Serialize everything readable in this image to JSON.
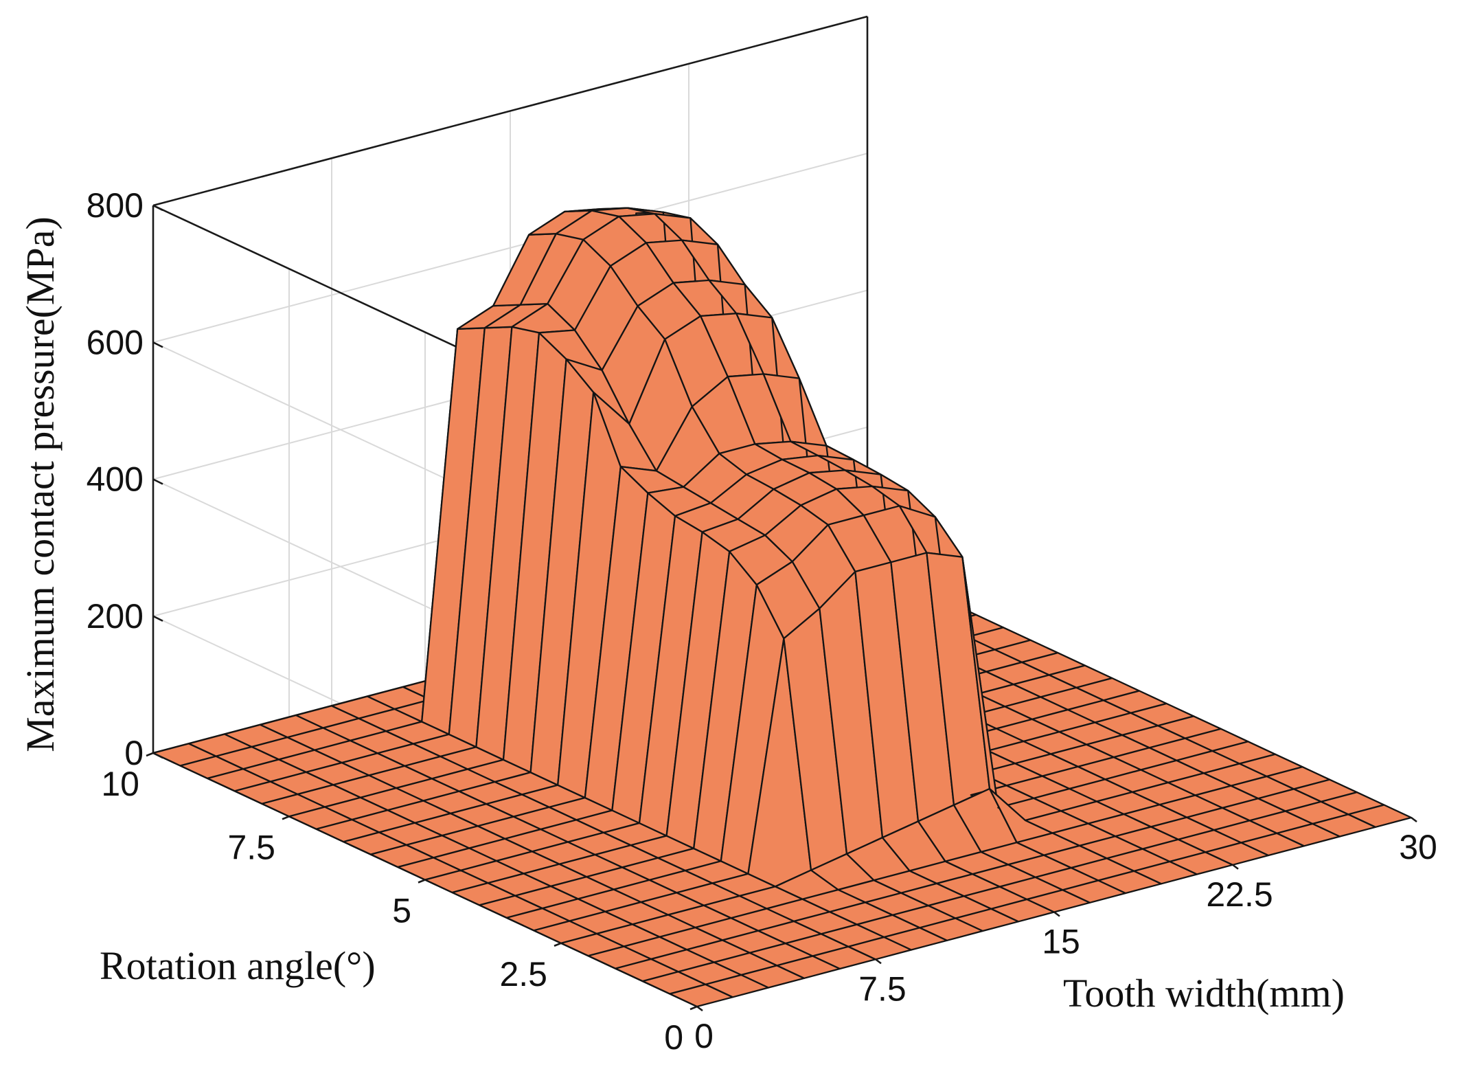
{
  "chart_data": {
    "type": "surface",
    "title": "",
    "xlabel": "Tooth width(mm)",
    "ylabel": "Rotation angle(°)",
    "zlabel": "Maximum contact pressure(MPa)",
    "xlim": [
      0,
      30
    ],
    "ylim": [
      0,
      10
    ],
    "zlim": [
      0,
      800
    ],
    "x_ticks": [
      "0",
      "7.5",
      "15",
      "22.5",
      "30"
    ],
    "y_ticks": [
      "0",
      "2.5",
      "5",
      "7.5",
      "10"
    ],
    "z_ticks": [
      "0",
      "200",
      "400",
      "600",
      "800"
    ],
    "grid": true,
    "surface_color": "#F0865A",
    "edge_color": "#141414",
    "x": [
      0,
      1.5,
      3,
      4.5,
      6,
      7.5,
      9,
      10.5,
      12,
      13.5,
      15,
      16.5,
      18,
      19.5,
      21,
      22.5,
      24,
      25.5,
      27,
      28.5,
      30
    ],
    "y": [
      0,
      0.5,
      1,
      1.5,
      2,
      2.5,
      3,
      3.5,
      4,
      4.5,
      5,
      5.5,
      6,
      6.5,
      7,
      7.5,
      8,
      8.5,
      9,
      9.5,
      10
    ],
    "z": [
      [
        0,
        0,
        0,
        0,
        0,
        0,
        0,
        0,
        0,
        0,
        0,
        0,
        0,
        0,
        0,
        0,
        0,
        0,
        0,
        0,
        0
      ],
      [
        0,
        0,
        0,
        0,
        0,
        0,
        0,
        0,
        0,
        0,
        0,
        0,
        0,
        0,
        0,
        0,
        0,
        0,
        0,
        0,
        0
      ],
      [
        0,
        0,
        0,
        0,
        0,
        0,
        0,
        0,
        0,
        0,
        0,
        0,
        0,
        0,
        0,
        0,
        0,
        0,
        0,
        0,
        0
      ],
      [
        0,
        0,
        0,
        0,
        0,
        0,
        0,
        0,
        0,
        0,
        0,
        0,
        0,
        0,
        0,
        0,
        0,
        0,
        0,
        0,
        0
      ],
      [
        0,
        0,
        0,
        0,
        0,
        0,
        0,
        0,
        0,
        0,
        0,
        0,
        0,
        0,
        0,
        0,
        0,
        0,
        0,
        0,
        0
      ],
      [
        0,
        0,
        0,
        0,
        0,
        0,
        0,
        10,
        20,
        30,
        40,
        50,
        60,
        0,
        0,
        0,
        0,
        0,
        0,
        0,
        0
      ],
      [
        0,
        0,
        0,
        0,
        0,
        0,
        0,
        330,
        360,
        400,
        400,
        400,
        380,
        0,
        0,
        0,
        0,
        0,
        0,
        0,
        0
      ],
      [
        0,
        0,
        0,
        0,
        0,
        0,
        0,
        390,
        410,
        450,
        450,
        450,
        420,
        0,
        0,
        0,
        0,
        0,
        0,
        0,
        0
      ],
      [
        0,
        0,
        0,
        0,
        0,
        0,
        0,
        420,
        430,
        460,
        470,
        460,
        440,
        0,
        0,
        0,
        0,
        0,
        0,
        0,
        0
      ],
      [
        0,
        0,
        0,
        0,
        0,
        0,
        0,
        430,
        435,
        465,
        475,
        465,
        445,
        0,
        0,
        0,
        0,
        0,
        0,
        0,
        0
      ],
      [
        0,
        0,
        0,
        0,
        0,
        0,
        0,
        435,
        440,
        468,
        476,
        468,
        448,
        0,
        0,
        0,
        0,
        0,
        0,
        0,
        0
      ],
      [
        0,
        0,
        0,
        0,
        0,
        0,
        0,
        450,
        445,
        480,
        480,
        470,
        450,
        0,
        0,
        0,
        0,
        0,
        0,
        0,
        0
      ],
      [
        0,
        0,
        0,
        0,
        0,
        0,
        0,
        470,
        450,
        530,
        560,
        550,
        530,
        0,
        0,
        0,
        0,
        0,
        0,
        0,
        0
      ],
      [
        0,
        0,
        0,
        0,
        0,
        0,
        0,
        560,
        500,
        610,
        630,
        620,
        600,
        0,
        0,
        0,
        0,
        0,
        0,
        0,
        0
      ],
      [
        0,
        0,
        0,
        0,
        0,
        0,
        0,
        590,
        560,
        640,
        660,
        650,
        630,
        0,
        0,
        0,
        0,
        0,
        0,
        0,
        0
      ],
      [
        0,
        0,
        0,
        0,
        0,
        0,
        0,
        610,
        600,
        680,
        700,
        690,
        670,
        0,
        0,
        0,
        0,
        0,
        0,
        0,
        0
      ],
      [
        0,
        0,
        0,
        0,
        0,
        0,
        0,
        600,
        620,
        700,
        720,
        710,
        690,
        0,
        0,
        0,
        0,
        0,
        0,
        0,
        0
      ],
      [
        0,
        0,
        0,
        0,
        0,
        0,
        0,
        580,
        600,
        690,
        710,
        700,
        680,
        0,
        0,
        0,
        0,
        0,
        0,
        0,
        0
      ],
      [
        0,
        0,
        0,
        0,
        0,
        0,
        0,
        560,
        580,
        670,
        690,
        680,
        660,
        0,
        0,
        0,
        0,
        0,
        0,
        0,
        0
      ],
      [
        0,
        0,
        0,
        0,
        0,
        0,
        0,
        0,
        0,
        0,
        0,
        0,
        0,
        0,
        0,
        0,
        0,
        0,
        0,
        0,
        0
      ],
      [
        0,
        0,
        0,
        0,
        0,
        0,
        0,
        0,
        0,
        0,
        0,
        0,
        0,
        0,
        0,
        0,
        0,
        0,
        0,
        0,
        0
      ]
    ]
  }
}
